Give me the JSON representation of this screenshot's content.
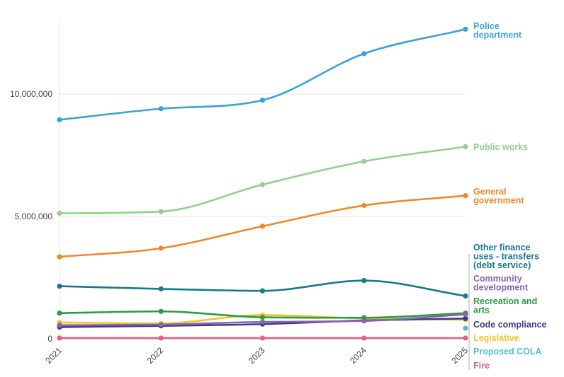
{
  "chart_data": {
    "type": "line",
    "title": "",
    "xlabel": "",
    "ylabel": "",
    "categories": [
      "2021",
      "2022",
      "2023",
      "2024",
      "2025"
    ],
    "ylim": [
      0,
      13000000
    ],
    "yticks": [
      {
        "value": 0,
        "label": "0"
      },
      {
        "value": 5000000,
        "label": "5,000,000"
      },
      {
        "value": 10000000,
        "label": "10,000,000"
      }
    ],
    "grid": true,
    "legend": "direct labels at right end of lines",
    "series": [
      {
        "name": "Police department",
        "label_lines": [
          "Police",
          "department"
        ],
        "color": "#3aa3d6",
        "values": [
          8950000,
          9400000,
          9750000,
          11650000,
          12650000
        ]
      },
      {
        "name": "Public works",
        "label_lines": [
          "Public works"
        ],
        "color": "#93cf8e",
        "values": [
          5130000,
          5200000,
          6300000,
          7250000,
          7850000
        ]
      },
      {
        "name": "General government",
        "label_lines": [
          "General",
          "government"
        ],
        "color": "#f0882a",
        "values": [
          3350000,
          3700000,
          4600000,
          5450000,
          5850000
        ]
      },
      {
        "name": "Other finance uses - transfers (debt service)",
        "label_lines": [
          "Other finance",
          "uses - transfers",
          "(debt service)"
        ],
        "color": "#177a8c",
        "values": [
          2150000,
          2040000,
          1960000,
          2380000,
          1750000
        ]
      },
      {
        "name": "Community development",
        "label_lines": [
          "Community",
          "development"
        ],
        "color": "#8a63b0",
        "values": [
          560000,
          580000,
          690000,
          730000,
          1000000
        ]
      },
      {
        "name": "Recreation and arts",
        "label_lines": [
          "Recreation and",
          "arts"
        ],
        "color": "#2a9d3e",
        "values": [
          1050000,
          1120000,
          880000,
          860000,
          1050000
        ]
      },
      {
        "name": "Code compliance",
        "label_lines": [
          "Code compliance"
        ],
        "color": "#3c3c8c",
        "values": [
          480000,
          530000,
          600000,
          750000,
          830000
        ]
      },
      {
        "name": "Legislative",
        "label_lines": [
          "Legislative"
        ],
        "color": "#f2c52a",
        "values": [
          670000,
          630000,
          970000,
          830000,
          780000
        ]
      },
      {
        "name": "Proposed COLA",
        "label_lines": [
          "Proposed COLA"
        ],
        "color": "#4fbfc9",
        "values": [
          null,
          null,
          null,
          null,
          430000
        ]
      },
      {
        "name": "Fire",
        "label_lines": [
          "Fire"
        ],
        "color": "#e8607e",
        "values": [
          30000,
          30000,
          30000,
          30000,
          30000
        ]
      }
    ]
  }
}
